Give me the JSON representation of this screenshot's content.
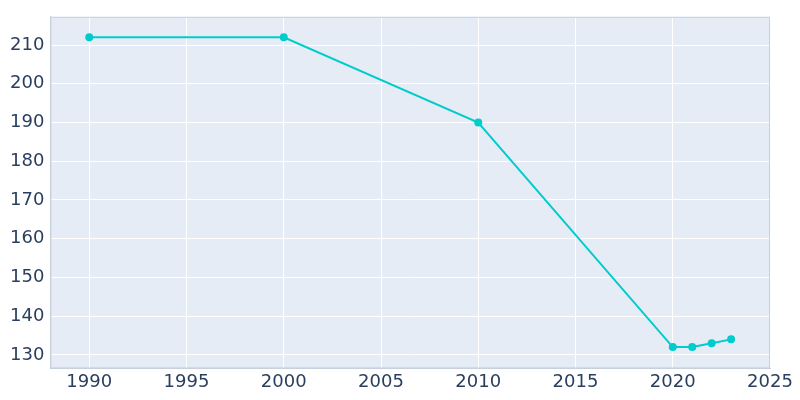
{
  "chart_data": {
    "type": "line",
    "x": [
      1990,
      2000,
      2010,
      2020,
      2021,
      2022,
      2023
    ],
    "values": [
      212,
      212,
      190,
      132,
      132,
      133,
      134
    ],
    "color": "#00cccc",
    "marker": "circle",
    "xlim": [
      1988,
      2025
    ],
    "xticks": [
      1990,
      1995,
      2000,
      2005,
      2010,
      2015,
      2020,
      2025
    ],
    "ylim": [
      126.5,
      217.3
    ],
    "yticks": [
      130,
      140,
      150,
      160,
      170,
      180,
      190,
      200,
      210
    ],
    "grid": true
  }
}
